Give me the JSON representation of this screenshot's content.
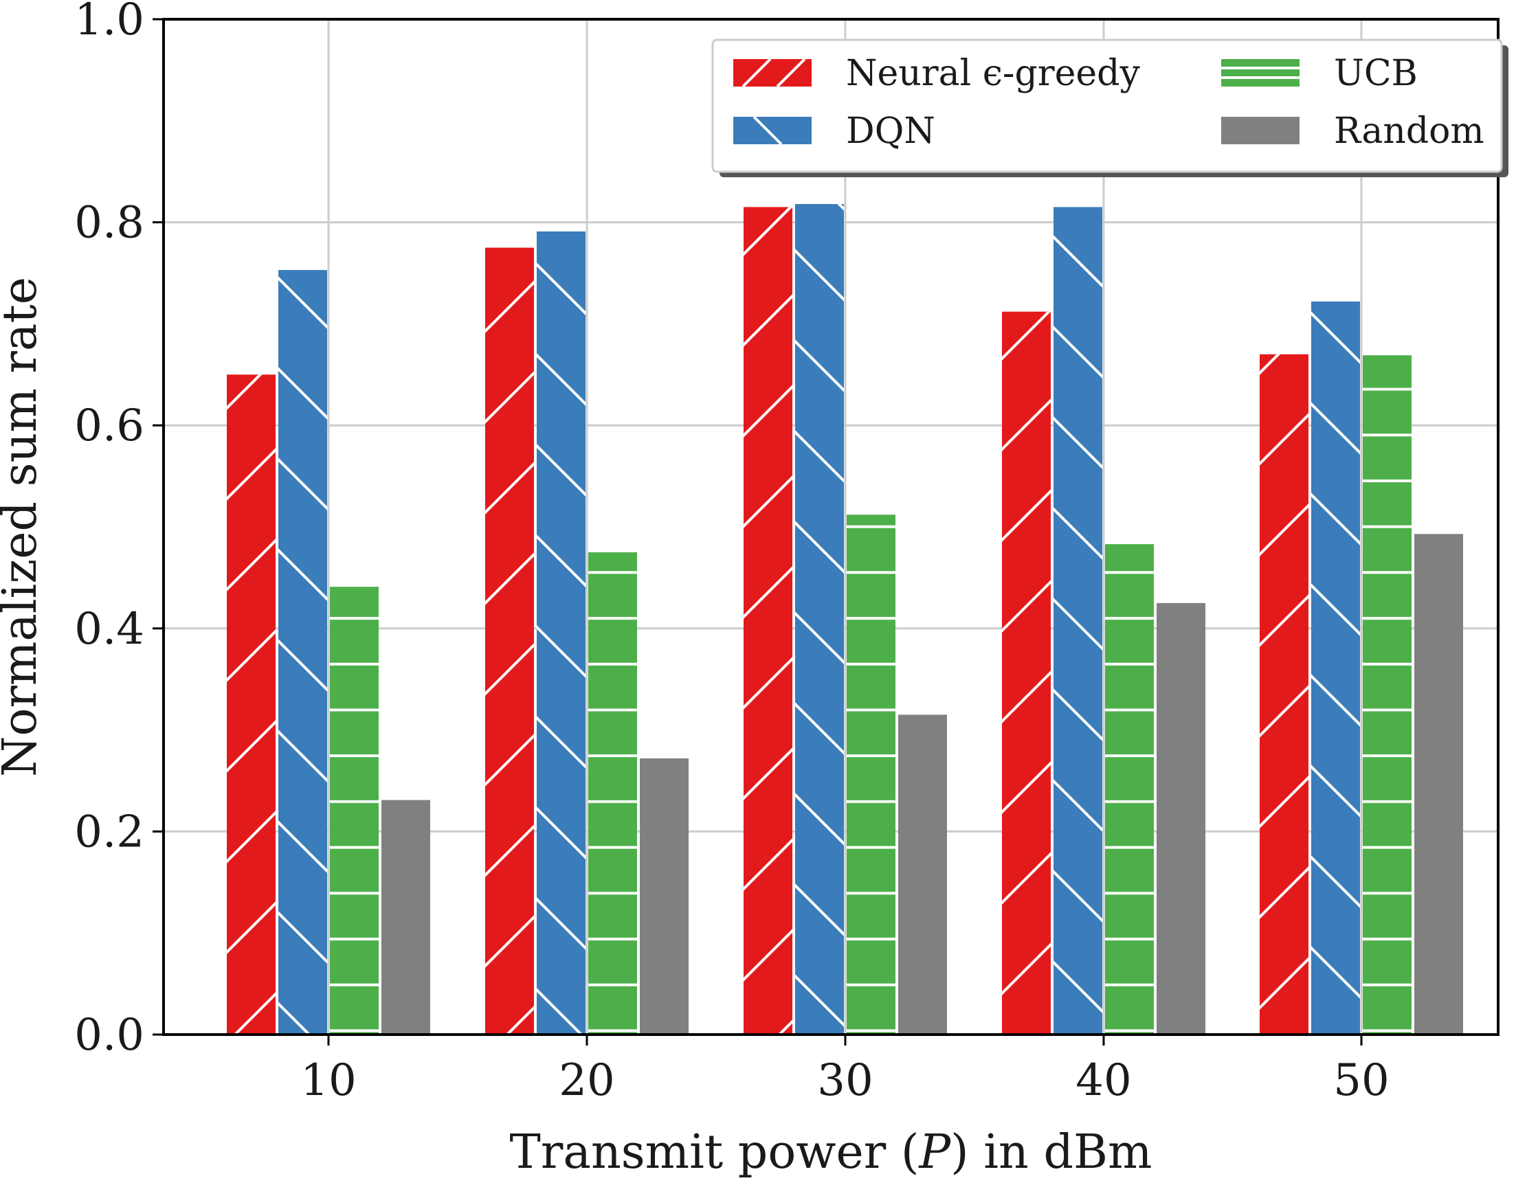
{
  "chart_data": {
    "type": "bar",
    "title": "",
    "xlabel_prefix": "Transmit power (",
    "xlabel_var": "P",
    "xlabel_suffix": ") in dBm",
    "ylabel": "Normalized sum rate",
    "categories": [
      "10",
      "20",
      "30",
      "40",
      "50"
    ],
    "ylim": [
      0.0,
      1.0
    ],
    "yticks": [
      "0.0",
      "0.2",
      "0.4",
      "0.6",
      "0.8",
      "1.0"
    ],
    "ytick_values": [
      0.0,
      0.2,
      0.4,
      0.6,
      0.8,
      1.0
    ],
    "grid": true,
    "legend_position": "top-right",
    "series": [
      {
        "name": "Neural ϵ-greedy",
        "values": [
          0.65,
          0.775,
          0.815,
          0.712,
          0.67
        ],
        "color": "#e31a1c",
        "pattern": "slash"
      },
      {
        "name": "DQN",
        "values": [
          0.753,
          0.791,
          0.818,
          0.815,
          0.722
        ],
        "color": "#3a7dba",
        "pattern": "backslash"
      },
      {
        "name": "UCB",
        "values": [
          0.441,
          0.475,
          0.512,
          0.483,
          0.669
        ],
        "color": "#4daf4a",
        "pattern": "horizontal"
      },
      {
        "name": "Random",
        "values": [
          0.231,
          0.272,
          0.315,
          0.425,
          0.493
        ],
        "color": "#808080",
        "pattern": "none"
      }
    ]
  }
}
